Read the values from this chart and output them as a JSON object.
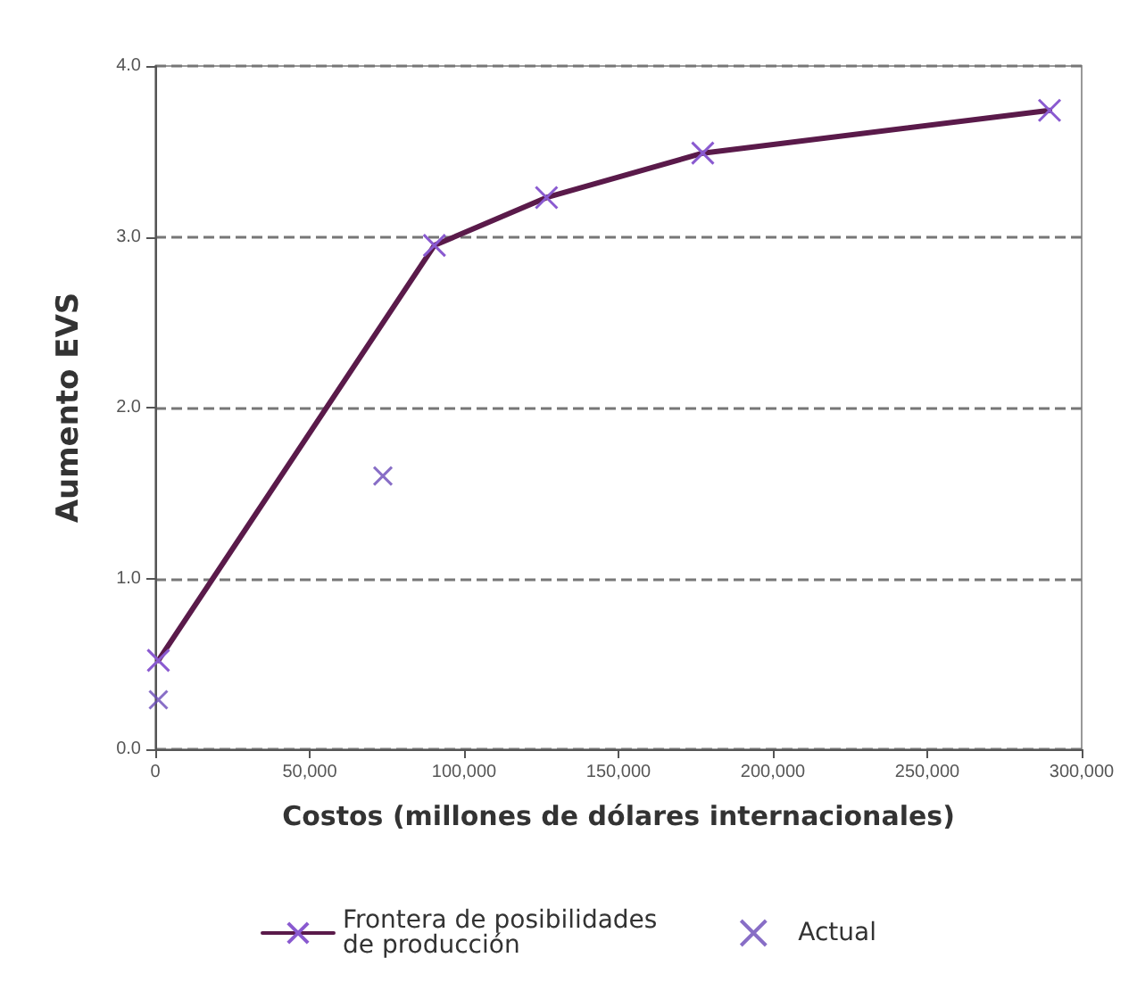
{
  "chart_data": {
    "type": "line",
    "xlabel": "Costos (millones de dólares internacionales)",
    "ylabel": "Aumento EVS",
    "xlim": [
      0,
      300000
    ],
    "ylim": [
      0,
      4
    ],
    "xticks": [
      0,
      {
        "value": 50000,
        "label": "50,000"
      },
      {
        "value": 100000,
        "label": "100,000"
      },
      {
        "value": 150000,
        "label": "150,000"
      },
      {
        "value": 200000,
        "label": "200,000"
      },
      {
        "value": 250000,
        "label": "250,000"
      },
      {
        "value": 300000,
        "label": "300,000"
      }
    ],
    "yticks": [
      {
        "value": 0,
        "label": "0.0"
      },
      {
        "value": 1,
        "label": "1.0"
      },
      {
        "value": 2,
        "label": "2.0"
      },
      {
        "value": 3,
        "label": "3.0"
      },
      {
        "value": 4,
        "label": "4.0"
      }
    ],
    "grid": "y",
    "legend": "bottom",
    "marker": "cross",
    "line_style": "solid",
    "series": [
      {
        "name": "Frontera de posibilidades de producción",
        "color": "#5a1a4a",
        "x": [
          1000,
          90400,
          126700,
          177300,
          289600
        ],
        "values": [
          0.52,
          2.95,
          3.23,
          3.49,
          3.74
        ]
      },
      {
        "name": "Actual",
        "type": "scatter",
        "color": "#6a4ab8",
        "x": [
          1000,
          73700
        ],
        "values": [
          0.29,
          1.6
        ]
      }
    ]
  }
}
